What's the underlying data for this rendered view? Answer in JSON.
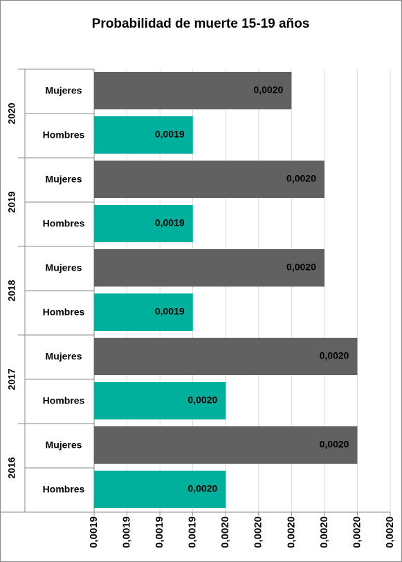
{
  "chart_data": {
    "type": "grouped-bar-horizontal",
    "title": "Probabilidad de muerte 15-19 años",
    "categories": [
      "2020",
      "2019",
      "2018",
      "2017",
      "2016"
    ],
    "series": [
      {
        "name": "Mujeres",
        "color": "#616161",
        "values": [
          0.00197,
          0.00198,
          0.00198,
          0.00199,
          0.00199
        ],
        "value_labels": [
          "0,0020",
          "0,0020",
          "0,0020",
          "0,0020",
          "0,0020"
        ]
      },
      {
        "name": "Hombres",
        "color": "#00b09c",
        "values": [
          0.00194,
          0.00194,
          0.00194,
          0.00195,
          0.00195
        ],
        "value_labels": [
          "0,0019",
          "0,0019",
          "0,0019",
          "0,0020",
          "0,0020"
        ]
      }
    ],
    "xlim": [
      0.00191,
      0.002
    ],
    "xticks": [
      {
        "value": 0.00191,
        "label": "0,0019"
      },
      {
        "value": 0.00192,
        "label": "0,0019"
      },
      {
        "value": 0.00193,
        "label": "0,0019"
      },
      {
        "value": 0.00194,
        "label": "0,0019"
      },
      {
        "value": 0.00195,
        "label": "0,0020"
      },
      {
        "value": 0.00196,
        "label": "0,0020"
      },
      {
        "value": 0.00197,
        "label": "0,0020"
      },
      {
        "value": 0.00198,
        "label": "0,0020"
      },
      {
        "value": 0.00199,
        "label": "0,0020"
      },
      {
        "value": 0.002,
        "label": "0,0020"
      }
    ],
    "grid": true
  }
}
